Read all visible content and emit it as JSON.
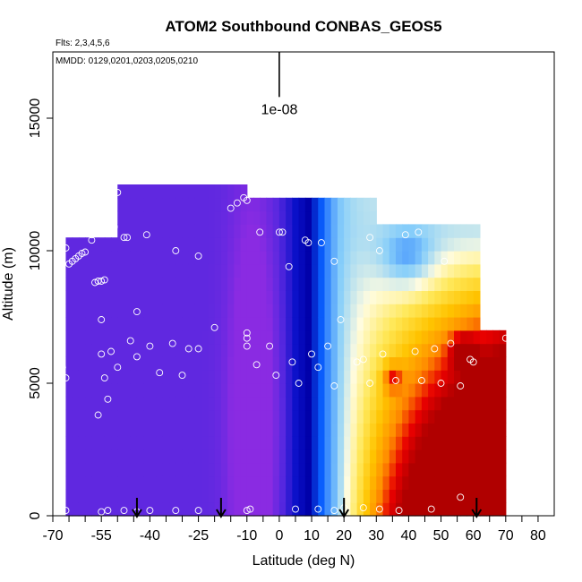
{
  "chart_data": {
    "type": "heatmap",
    "title": "ATOM2 Southbound CONBAS_GEOS5",
    "subtitle_flights": "Flts: 2,3,4,5,6",
    "subtitle_dates": "MMDD: 0129,0201,0203,0205,0210",
    "xlabel": "Latitude (deg N)",
    "ylabel": "Altitude (m)",
    "xlim": [
      -70,
      85
    ],
    "ylim": [
      0,
      17500
    ],
    "x_ticks": [
      {
        "value": -70,
        "label": "-70"
      },
      {
        "value": -55,
        "label": "-55"
      },
      {
        "value": -40,
        "label": "-40"
      },
      {
        "value": -25,
        "label": "-25"
      },
      {
        "value": -10,
        "label": "-10"
      },
      {
        "value": 0,
        "label": "0"
      },
      {
        "value": 10,
        "label": "10"
      },
      {
        "value": 20,
        "label": "20"
      },
      {
        "value": 30,
        "label": "30"
      },
      {
        "value": 40,
        "label": "40"
      },
      {
        "value": 50,
        "label": "50"
      },
      {
        "value": 60,
        "label": "60"
      },
      {
        "value": 70,
        "label": "70"
      },
      {
        "value": 80,
        "label": "80"
      }
    ],
    "y_ticks": [
      {
        "value": 0,
        "label": "0"
      },
      {
        "value": 5000,
        "label": "5000"
      },
      {
        "value": 10000,
        "label": "10000"
      },
      {
        "value": 15000,
        "label": "15000"
      }
    ],
    "scale_bar": {
      "label": "1e-08",
      "x": 0,
      "y_bottom": 15800,
      "y_top": 17500
    },
    "arrows_lat": [
      -44,
      -18,
      20,
      61
    ],
    "color_scale": [
      "#8a2be2",
      "#5a28e0",
      "#0a10c8",
      "#0000a8",
      "#0a60ff",
      "#87cefa",
      "#fffce0",
      "#ffe85a",
      "#ffc400",
      "#ff8c00",
      "#e80000",
      "#b00000"
    ],
    "field_model": {
      "lat_step": 2,
      "alt_step": 500,
      "anomalies": [
        {
          "lat": -8,
          "alt": 3500,
          "dlat": 7,
          "dalt": 8000,
          "amp": -0.2
        },
        {
          "lat": 52,
          "alt": 1600,
          "dlat": 6,
          "dalt": 1300,
          "amp": 0.22
        },
        {
          "lat": 57,
          "alt": 6200,
          "dlat": 4,
          "dalt": 600,
          "amp": 0.22
        },
        {
          "lat": 35,
          "alt": 5200,
          "dlat": 3,
          "dalt": 500,
          "amp": 0.18
        },
        {
          "lat": 40,
          "alt": 9600,
          "dlat": 9,
          "dalt": 1200,
          "amp": -0.12
        }
      ]
    },
    "data_profile": [
      {
        "lat_min": -66,
        "lat_max": -8,
        "alt_min": 0,
        "alt_max": 10500
      },
      {
        "lat_min": -50,
        "lat_max": -10,
        "alt_min": 0,
        "alt_max": 12400
      },
      {
        "lat_min": -10,
        "lat_max": 30,
        "alt_min": 0,
        "alt_max": 12000
      },
      {
        "lat_min": 30,
        "lat_max": 62,
        "alt_min": 0,
        "alt_max": 11200
      },
      {
        "lat_min": 30,
        "lat_max": 70,
        "alt_min": 0,
        "alt_max": 7000
      }
    ],
    "observations": [
      {
        "lat": -66,
        "alt": 10100
      },
      {
        "lat": -65,
        "alt": 9500
      },
      {
        "lat": -64,
        "alt": 9600
      },
      {
        "lat": -63,
        "alt": 9700
      },
      {
        "lat": -62,
        "alt": 9800
      },
      {
        "lat": -61,
        "alt": 9900
      },
      {
        "lat": -60,
        "alt": 9950
      },
      {
        "lat": -58,
        "alt": 10400
      },
      {
        "lat": -58,
        "alt": 10600
      },
      {
        "lat": -57,
        "alt": 8800
      },
      {
        "lat": -56,
        "alt": 8850
      },
      {
        "lat": -55,
        "alt": 8850
      },
      {
        "lat": -54,
        "alt": 8900
      },
      {
        "lat": -54,
        "alt": 11800
      },
      {
        "lat": -52,
        "alt": 12000
      },
      {
        "lat": -50,
        "alt": 12200
      },
      {
        "lat": -51,
        "alt": 10900
      },
      {
        "lat": -48,
        "alt": 10500
      },
      {
        "lat": -47,
        "alt": 10500
      },
      {
        "lat": -41,
        "alt": 10600
      },
      {
        "lat": -32,
        "alt": 10000
      },
      {
        "lat": -25,
        "alt": 9800
      },
      {
        "lat": -15,
        "alt": 11600
      },
      {
        "lat": -13,
        "alt": 11800
      },
      {
        "lat": -11,
        "alt": 12000
      },
      {
        "lat": -10,
        "alt": 11900
      },
      {
        "lat": -6,
        "alt": 10700
      },
      {
        "lat": 0,
        "alt": 10700
      },
      {
        "lat": 1,
        "alt": 10700
      },
      {
        "lat": 3,
        "alt": 9400
      },
      {
        "lat": 8,
        "alt": 10400
      },
      {
        "lat": 9,
        "alt": 10300
      },
      {
        "lat": 13,
        "alt": 10300
      },
      {
        "lat": 17,
        "alt": 9600
      },
      {
        "lat": 28,
        "alt": 10500
      },
      {
        "lat": 31,
        "alt": 10000
      },
      {
        "lat": 39,
        "alt": 10600
      },
      {
        "lat": 43,
        "alt": 10700
      },
      {
        "lat": 51,
        "alt": 9600
      },
      {
        "lat": 63,
        "alt": 11300
      },
      {
        "lat": 66,
        "alt": 11200
      },
      {
        "lat": -67,
        "alt": 5600
      },
      {
        "lat": -66,
        "alt": 5200
      },
      {
        "lat": -55,
        "alt": 7400
      },
      {
        "lat": -55,
        "alt": 6100
      },
      {
        "lat": -54,
        "alt": 5200
      },
      {
        "lat": -53,
        "alt": 4400
      },
      {
        "lat": -52,
        "alt": 6200
      },
      {
        "lat": -50,
        "alt": 5600
      },
      {
        "lat": -46,
        "alt": 6600
      },
      {
        "lat": -44,
        "alt": 6000
      },
      {
        "lat": -44,
        "alt": 7700
      },
      {
        "lat": -40,
        "alt": 6400
      },
      {
        "lat": -37,
        "alt": 5400
      },
      {
        "lat": -33,
        "alt": 6500
      },
      {
        "lat": -30,
        "alt": 5300
      },
      {
        "lat": -28,
        "alt": 6300
      },
      {
        "lat": -25,
        "alt": 6300
      },
      {
        "lat": -20,
        "alt": 7100
      },
      {
        "lat": -10,
        "alt": 6900
      },
      {
        "lat": -10,
        "alt": 6700
      },
      {
        "lat": -10,
        "alt": 6400
      },
      {
        "lat": -7,
        "alt": 5700
      },
      {
        "lat": -3,
        "alt": 6400
      },
      {
        "lat": -1,
        "alt": 5300
      },
      {
        "lat": 4,
        "alt": 5800
      },
      {
        "lat": 6,
        "alt": 5000
      },
      {
        "lat": 10,
        "alt": 6100
      },
      {
        "lat": 12,
        "alt": 5600
      },
      {
        "lat": 15,
        "alt": 6400
      },
      {
        "lat": 17,
        "alt": 4900
      },
      {
        "lat": 19,
        "alt": 7400
      },
      {
        "lat": 24,
        "alt": 5800
      },
      {
        "lat": 26,
        "alt": 5900
      },
      {
        "lat": 28,
        "alt": 5000
      },
      {
        "lat": 32,
        "alt": 6100
      },
      {
        "lat": 36,
        "alt": 5100
      },
      {
        "lat": 42,
        "alt": 6200
      },
      {
        "lat": 44,
        "alt": 5100
      },
      {
        "lat": 48,
        "alt": 6300
      },
      {
        "lat": 50,
        "alt": 5000
      },
      {
        "lat": 53,
        "alt": 6500
      },
      {
        "lat": 56,
        "alt": 4900
      },
      {
        "lat": 59,
        "alt": 5900
      },
      {
        "lat": 60,
        "alt": 5800
      },
      {
        "lat": 70,
        "alt": 6700
      },
      {
        "lat": -56,
        "alt": 3800
      },
      {
        "lat": -66,
        "alt": 200
      },
      {
        "lat": -55,
        "alt": 150
      },
      {
        "lat": -53,
        "alt": 200
      },
      {
        "lat": -48,
        "alt": 200
      },
      {
        "lat": -44,
        "alt": 150
      },
      {
        "lat": -40,
        "alt": 200
      },
      {
        "lat": -32,
        "alt": 200
      },
      {
        "lat": -25,
        "alt": 200
      },
      {
        "lat": -10,
        "alt": 200
      },
      {
        "lat": -9,
        "alt": 250
      },
      {
        "lat": 5,
        "alt": 250
      },
      {
        "lat": 12,
        "alt": 250
      },
      {
        "lat": 17,
        "alt": 200
      },
      {
        "lat": 20,
        "alt": 300
      },
      {
        "lat": 26,
        "alt": 300
      },
      {
        "lat": 31,
        "alt": 250
      },
      {
        "lat": 37,
        "alt": 200
      },
      {
        "lat": 47,
        "alt": 250
      },
      {
        "lat": 56,
        "alt": 700
      }
    ]
  }
}
